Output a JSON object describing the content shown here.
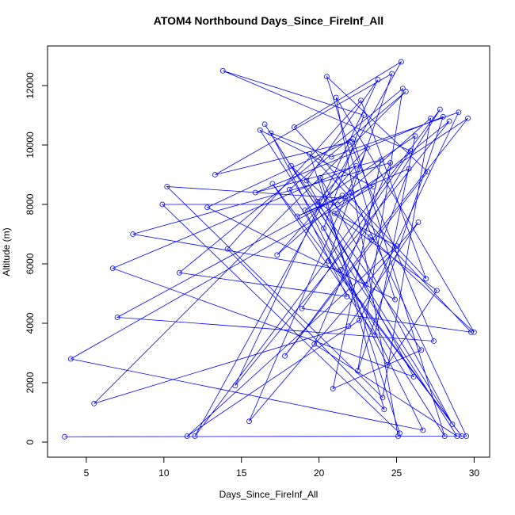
{
  "chart_data": {
    "type": "line",
    "title": "ATOM4 Northbound Days_Since_FireInf_All",
    "x_label": "Days_Since_FireInf_All",
    "y_label": "Altitude (m)",
    "color": "#0000ff",
    "xlim": [
      2.5,
      31.0
    ],
    "ylim": [
      -507,
      13333
    ],
    "xticks": [
      5,
      10,
      15,
      20,
      25,
      30
    ],
    "yticks": [
      0,
      2000,
      4000,
      6000,
      8000,
      10000,
      12000
    ],
    "x": [
      3.6,
      29.5,
      22.1,
      18.4,
      25.3,
      12.0,
      27.8,
      21.4,
      8.0,
      24.6,
      19.7,
      28.9,
      16.2,
      23.5,
      4.0,
      26.7,
      20.3,
      22.9,
      13.8,
      25.9,
      18.9,
      29.8,
      21.7,
      10.2,
      24.1,
      27.2,
      17.3,
      22.4,
      6.7,
      26.1,
      19.2,
      23.8,
      14.6,
      28.4,
      21.0,
      25.0,
      11.5,
      22.6,
      29.0,
      20.8,
      16.9,
      24.4,
      27.6,
      19.9,
      23.1,
      15.5,
      26.4,
      21.9,
      5.5,
      25.6,
      18.1,
      28.1,
      22.2,
      12.8,
      24.9,
      20.5,
      27.0,
      17.8,
      23.4,
      29.6,
      21.2,
      9.9,
      25.2,
      19.4,
      26.9,
      22.7,
      14.1,
      24.2,
      20.1,
      28.6,
      16.5,
      23.0,
      25.8,
      18.6,
      21.5,
      7.0,
      27.4,
      22.0,
      13.3,
      24.7,
      20.6,
      29.2,
      17.0,
      23.6,
      26.2,
      19.1,
      21.8,
      11.0,
      25.4,
      22.5,
      28.0,
      15.9,
      24.0,
      20.9,
      26.6,
      18.2,
      23.3,
      30.0,
      21.1,
      25.1
    ],
    "values": [
      180,
      200,
      8400,
      10600,
      12800,
      200,
      11200,
      5800,
      7000,
      9400,
      3300,
      200,
      10500,
      8600,
      2800,
      400,
      7200,
      11000,
      12500,
      9800,
      4500,
      3700,
      8200,
      8600,
      1500,
      10900,
      6300,
      9300,
      5850,
      2200,
      8800,
      12200,
      1900,
      10800,
      7700,
      6600,
      200,
      4100,
      11100,
      9600,
      10400,
      2600,
      5100,
      8100,
      9900,
      700,
      7400,
      3900,
      1300,
      11800,
      8500,
      200,
      10200,
      7900,
      4800,
      12300,
      9100,
      2900,
      6800,
      10900,
      8000,
      8000,
      300,
      9700,
      5500,
      11500,
      6500,
      1100,
      8900,
      600,
      10700,
      5300,
      9200,
      7600,
      8300,
      4200,
      3400,
      10100,
      9000,
      12400,
      6100,
      200,
      8700,
      3600,
      10300,
      7800,
      4900,
      5700,
      11900,
      2400,
      10950,
      8400,
      9500,
      1800,
      3100,
      9300,
      6900,
      3700,
      11600,
      200
    ]
  }
}
